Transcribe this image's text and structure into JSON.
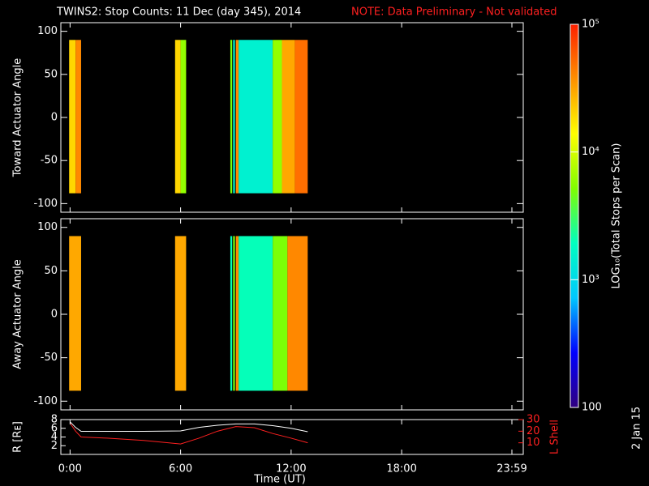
{
  "chart_data": {
    "type": "heatmap",
    "title": "TWINS2: Stop Counts: 11 Dec (day 345), 2014",
    "note": "NOTE: Data Preliminary - Not validated",
    "note_color": "#ff2020",
    "side_text": "2 Jan 15",
    "xlabel": "Time (UT)",
    "xlim": [
      -0.5,
      24.6
    ],
    "xticks": [
      {
        "value": 0,
        "label": "0:00"
      },
      {
        "value": 6,
        "label": "6:00"
      },
      {
        "value": 12,
        "label": "12:00"
      },
      {
        "value": 18,
        "label": "18:00"
      },
      {
        "value": 23.983,
        "label": "23:59"
      }
    ],
    "angle_range": [
      -88,
      90
    ],
    "panels": [
      {
        "ylabel": "Toward Actuator Angle",
        "ylim": [
          -110,
          110
        ],
        "yticks": [
          -100,
          -50,
          0,
          50,
          100
        ],
        "segments": [
          {
            "x": [
              -0.05,
              0.3
            ],
            "value": 20000
          },
          {
            "x": [
              0.3,
              0.6
            ],
            "value": 40000
          },
          {
            "x": [
              5.7,
              6.0
            ],
            "value": 20000
          },
          {
            "x": [
              6.0,
              6.3
            ],
            "value": 6000
          },
          {
            "x": [
              8.7,
              8.8
            ],
            "value": 5000
          },
          {
            "x": [
              8.85,
              8.95
            ],
            "value": 1500
          },
          {
            "x": [
              9.0,
              9.15
            ],
            "value": 40000
          },
          {
            "x": [
              9.15,
              11.0
            ],
            "value": 1500
          },
          {
            "x": [
              11.0,
              11.5
            ],
            "value": 6000
          },
          {
            "x": [
              11.5,
              12.2
            ],
            "value": 30000
          },
          {
            "x": [
              12.2,
              12.9
            ],
            "value": 50000
          }
        ]
      },
      {
        "ylabel": "Away Actuator Angle",
        "ylim": [
          -110,
          110
        ],
        "yticks": [
          -100,
          -50,
          0,
          50,
          100
        ],
        "segments": [
          {
            "x": [
              -0.05,
              0.6
            ],
            "value": 30000
          },
          {
            "x": [
              5.7,
              6.3
            ],
            "value": 30000
          },
          {
            "x": [
              8.7,
              8.8
            ],
            "value": 2000
          },
          {
            "x": [
              8.85,
              8.95
            ],
            "value": 5000
          },
          {
            "x": [
              9.0,
              9.15
            ],
            "value": 40000
          },
          {
            "x": [
              9.15,
              11.0
            ],
            "value": 2000
          },
          {
            "x": [
              11.0,
              11.8
            ],
            "value": 5000
          },
          {
            "x": [
              11.8,
              12.9
            ],
            "value": 40000
          }
        ]
      }
    ],
    "ephemeris": {
      "ylabel": "R [Rᴇ]",
      "ylim": [
        0,
        8
      ],
      "yticks": [
        2,
        4,
        6,
        8
      ],
      "y2label": "L Shell",
      "y2lim": [
        0,
        30
      ],
      "y2ticks": [
        10,
        20,
        30
      ],
      "x": [
        0,
        0.3,
        0.6,
        2,
        4,
        6,
        7,
        8,
        9,
        10,
        11,
        12,
        12.9
      ],
      "series": [
        {
          "color": "#ffffff",
          "values": [
            7.5,
            6.2,
            5.3,
            5.3,
            5.3,
            5.4,
            6.2,
            6.7,
            7,
            7,
            6.6,
            6,
            5.2
          ]
        },
        {
          "color": "#ff2020",
          "axis": "y2",
          "values": [
            27,
            20,
            15,
            14,
            12,
            9,
            14,
            20,
            24,
            23,
            18,
            14,
            10
          ]
        }
      ]
    },
    "colorbar": {
      "label": "LOG₁₀(Total Stops per Scan)",
      "log": true,
      "lim": [
        100,
        100000
      ],
      "ticks": [
        {
          "value": 100000,
          "label": "10⁵"
        },
        {
          "value": 10000,
          "label": "10⁴"
        },
        {
          "value": 1000,
          "label": "10³"
        },
        100
      ],
      "colors": [
        "#30007f",
        "#0000ff",
        "#00c8ff",
        "#00ffc0",
        "#80ff00",
        "#ffff00",
        "#ff9000",
        "#ff2000"
      ]
    }
  }
}
